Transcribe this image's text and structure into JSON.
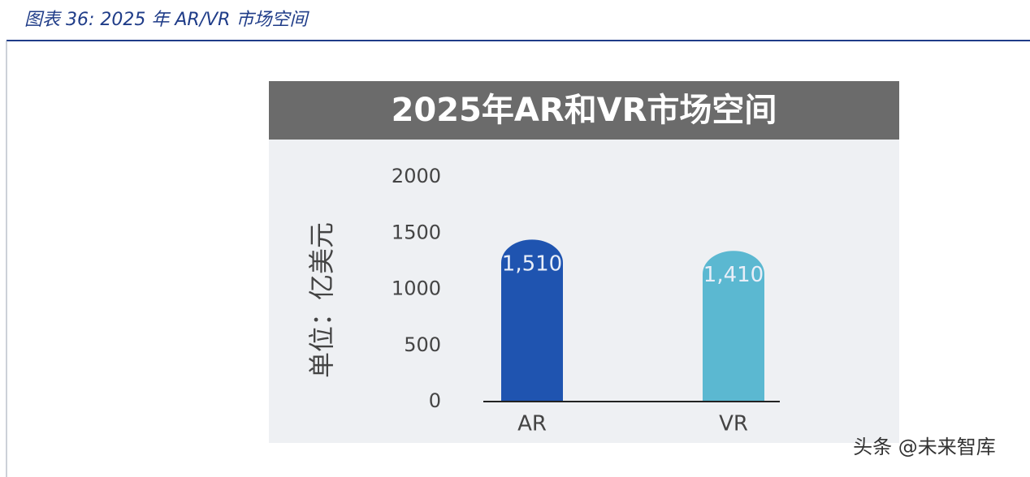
{
  "header": {
    "title": "图表 36:  2025 年 AR/VR 市场空间"
  },
  "chart_data": {
    "type": "bar",
    "title": "2025年AR和VR市场空间",
    "y_label": "单位：亿美元",
    "categories": [
      "AR",
      "VR"
    ],
    "values": [
      1510,
      1410
    ],
    "value_labels": [
      "1,510",
      "1,410"
    ],
    "colors": [
      "#1f54b0",
      "#5bb8d1"
    ],
    "ylim": [
      0,
      2000
    ],
    "yticks": [
      0,
      500,
      1000,
      1500,
      2000
    ],
    "grid": false
  },
  "watermark": "头条 @未来智库"
}
